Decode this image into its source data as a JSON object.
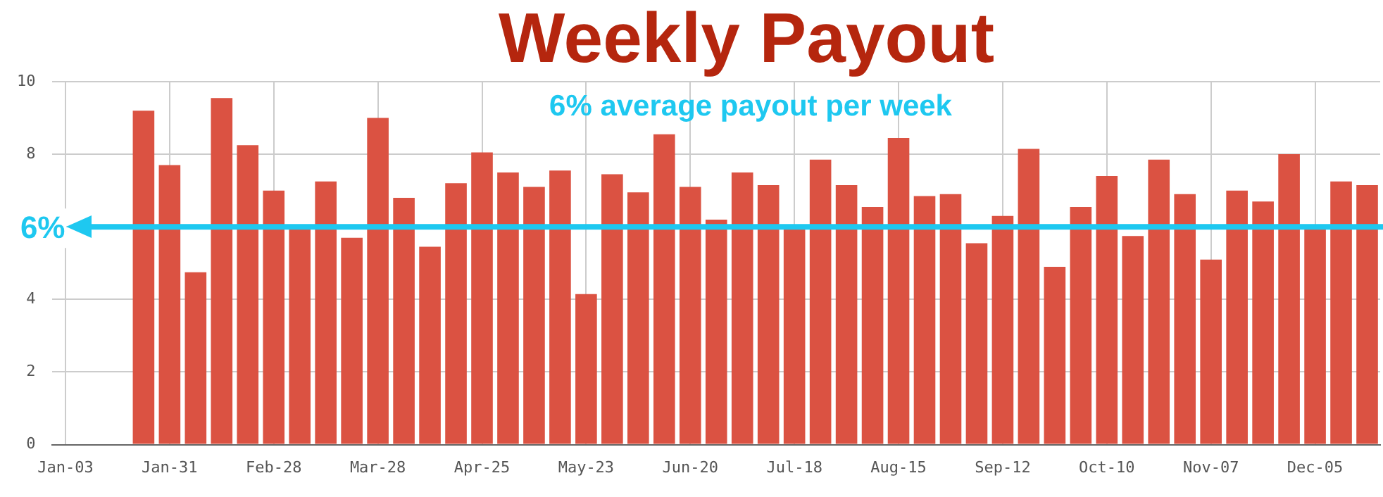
{
  "chart_data": {
    "type": "bar",
    "title": "Weekly Payout",
    "annotations": [
      "6% average payout per week"
    ],
    "categories": [
      "Jan-03",
      null,
      null,
      null,
      "Jan-31",
      null,
      null,
      null,
      "Feb-28",
      null,
      null,
      null,
      "Mar-28",
      null,
      null,
      null,
      "Apr-25",
      null,
      null,
      null,
      "May-23",
      null,
      null,
      null,
      "Jun-20",
      null,
      null,
      null,
      "Jul-18",
      null,
      null,
      null,
      "Aug-15",
      null,
      null,
      null,
      "Sep-12",
      null,
      null,
      null,
      "Oct-10",
      null,
      null,
      null,
      "Nov-07",
      null,
      null,
      null,
      "Dec-05",
      null,
      null
    ],
    "series": [
      {
        "color": "#db5242",
        "values": [
          null,
          null,
          null,
          9.2,
          7.7,
          4.75,
          9.55,
          8.25,
          7.0,
          6.0,
          7.25,
          5.7,
          9.0,
          6.8,
          5.45,
          7.2,
          8.05,
          7.5,
          7.1,
          7.55,
          4.15,
          7.45,
          6.95,
          8.55,
          7.1,
          6.2,
          7.5,
          7.15,
          6.05,
          7.85,
          7.15,
          6.55,
          8.45,
          6.85,
          6.9,
          5.55,
          6.3,
          8.15,
          4.9,
          6.55,
          7.4,
          5.75,
          7.85,
          6.9,
          5.1,
          7.0,
          6.7,
          8.0,
          6.0,
          7.25,
          7.15
        ]
      }
    ],
    "ylim": [
      0,
      10
    ],
    "yticks": [
      0,
      2,
      4,
      {
        "value": 6,
        "label": null
      },
      8,
      10
    ],
    "ref_lines": [
      {
        "axis": "y",
        "value": 6,
        "label": "6%",
        "color": "#1ec8f0"
      }
    ],
    "grid": true,
    "legend": false
  }
}
